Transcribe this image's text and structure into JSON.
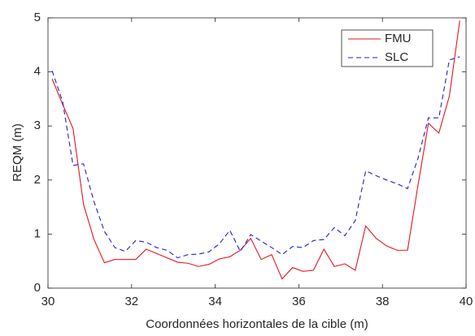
{
  "chart_data": {
    "type": "line",
    "xlabel": "Coordonnées horizontales de la cible (m)",
    "ylabel": "REQM (m)",
    "x": [
      30.1,
      30.35,
      30.6,
      30.85,
      31.1,
      31.35,
      31.6,
      31.85,
      32.1,
      32.35,
      32.6,
      32.85,
      33.1,
      33.35,
      33.6,
      33.85,
      34.1,
      34.35,
      34.6,
      34.85,
      35.1,
      35.35,
      35.6,
      35.85,
      36.1,
      36.35,
      36.6,
      36.85,
      37.1,
      37.35,
      37.6,
      37.85,
      38.1,
      38.35,
      38.6,
      38.85,
      39.1,
      39.35,
      39.6,
      39.85
    ],
    "series": [
      {
        "name": "FMU",
        "color": "#e8141e",
        "style": "solid",
        "values": [
          3.87,
          3.4,
          2.95,
          1.55,
          0.9,
          0.47,
          0.53,
          0.53,
          0.53,
          0.72,
          0.64,
          0.56,
          0.48,
          0.46,
          0.4,
          0.44,
          0.54,
          0.58,
          0.7,
          0.92,
          0.53,
          0.62,
          0.17,
          0.38,
          0.31,
          0.33,
          0.72,
          0.4,
          0.45,
          0.33,
          1.15,
          0.92,
          0.78,
          0.7,
          0.7,
          1.9,
          3.05,
          2.87,
          3.55,
          4.95
        ]
      },
      {
        "name": "SLC",
        "color": "#1f1fd6",
        "style": "dashed",
        "values": [
          4.02,
          3.45,
          2.27,
          2.3,
          1.6,
          1.05,
          0.75,
          0.68,
          0.88,
          0.85,
          0.75,
          0.7,
          0.56,
          0.62,
          0.63,
          0.67,
          0.82,
          1.07,
          0.68,
          0.99,
          0.87,
          0.75,
          0.62,
          0.77,
          0.75,
          0.88,
          0.9,
          1.12,
          0.97,
          1.25,
          2.17,
          2.08,
          2.0,
          1.93,
          1.84,
          2.4,
          3.15,
          3.15,
          4.22,
          4.28
        ]
      }
    ],
    "xlim": [
      30,
      40
    ],
    "xticks": [
      30,
      32,
      34,
      36,
      38,
      40
    ],
    "ylim": [
      0,
      5
    ],
    "yticks": [
      0,
      1,
      2,
      3,
      4,
      5
    ],
    "grid": false,
    "legend": "northeast"
  }
}
